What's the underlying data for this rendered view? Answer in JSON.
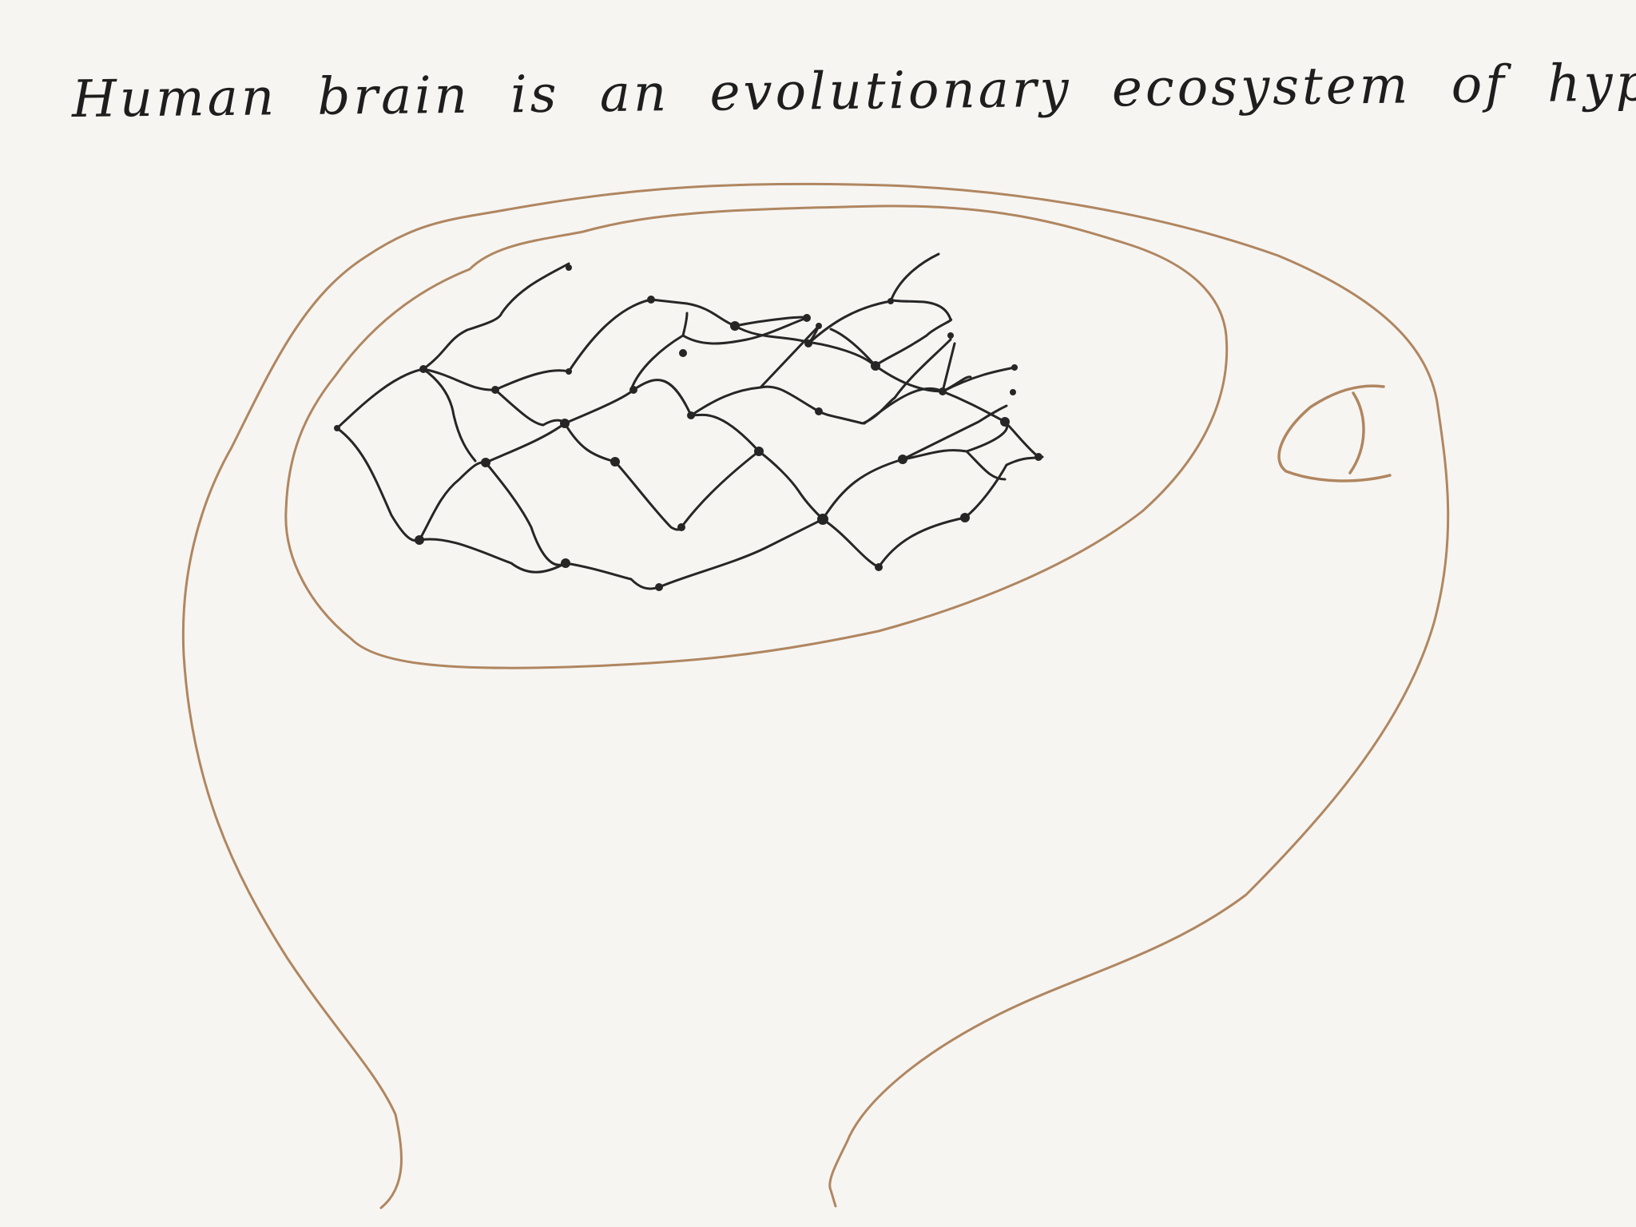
{
  "caption": "Human brain is an evolutionary ecosystem of hypothesis.",
  "colors": {
    "background": "#f6f5f2",
    "head_outline": "#b08660",
    "network": "#262626",
    "caption": "#1e1e1e"
  }
}
